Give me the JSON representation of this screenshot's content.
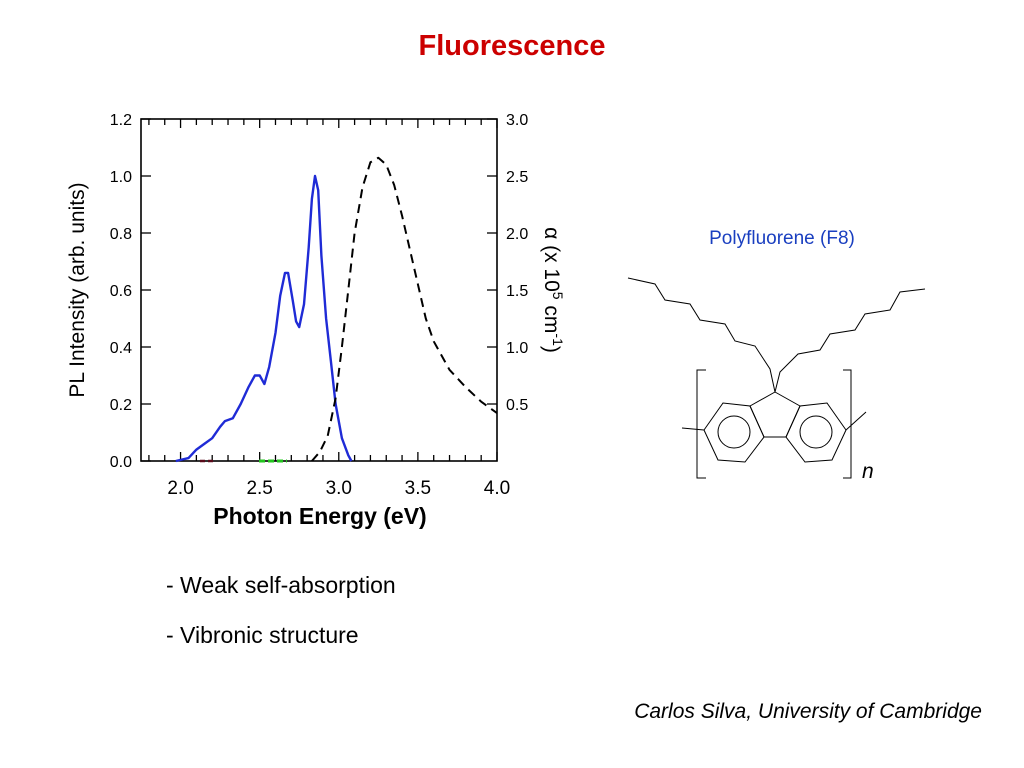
{
  "slide": {
    "title": "Fluorescence",
    "bullets": [
      "- Weak self-absorption",
      "- Vibronic structure"
    ],
    "credit": "Carlos Silva, University of Cambridge"
  },
  "molecule": {
    "label": "Polyfluorene (F8)",
    "repeat_subscript": "n",
    "label_color": "#1a3fc0"
  },
  "chart_data": {
    "type": "line",
    "xlabel": "Photon Energy (eV)",
    "ylabel": "PL Intensity (arb. units)",
    "y2label_parts": [
      "α (x 10",
      "5",
      " cm",
      "-1",
      ")"
    ],
    "xlim": [
      1.75,
      4.0
    ],
    "ylim": [
      0,
      1.2
    ],
    "y2lim": [
      0,
      3.0
    ],
    "x_ticks": [
      "2.0",
      "2.5",
      "3.0",
      "3.5",
      "4.0"
    ],
    "y_ticks": [
      "0.0",
      "0.2",
      "0.4",
      "0.6",
      "0.8",
      "1.0",
      "1.2"
    ],
    "y2_ticks": [
      "0.5",
      "1.0",
      "1.5",
      "2.0",
      "2.5",
      "3.0"
    ],
    "grid": false,
    "series": [
      {
        "axis": "left",
        "style": "solid",
        "color": "#1f2bd6",
        "points": [
          [
            1.97,
            0.0
          ],
          [
            2.05,
            0.01
          ],
          [
            2.1,
            0.04
          ],
          [
            2.15,
            0.06
          ],
          [
            2.2,
            0.08
          ],
          [
            2.25,
            0.12
          ],
          [
            2.28,
            0.14
          ],
          [
            2.33,
            0.15
          ],
          [
            2.38,
            0.2
          ],
          [
            2.43,
            0.26
          ],
          [
            2.47,
            0.3
          ],
          [
            2.5,
            0.3
          ],
          [
            2.53,
            0.27
          ],
          [
            2.56,
            0.33
          ],
          [
            2.6,
            0.45
          ],
          [
            2.63,
            0.58
          ],
          [
            2.66,
            0.66
          ],
          [
            2.68,
            0.66
          ],
          [
            2.71,
            0.56
          ],
          [
            2.73,
            0.49
          ],
          [
            2.75,
            0.47
          ],
          [
            2.78,
            0.55
          ],
          [
            2.81,
            0.75
          ],
          [
            2.83,
            0.92
          ],
          [
            2.85,
            1.0
          ],
          [
            2.87,
            0.95
          ],
          [
            2.89,
            0.72
          ],
          [
            2.92,
            0.5
          ],
          [
            2.95,
            0.35
          ],
          [
            2.98,
            0.2
          ],
          [
            3.02,
            0.08
          ],
          [
            3.06,
            0.02
          ],
          [
            3.08,
            0.0
          ]
        ]
      },
      {
        "axis": "right",
        "style": "dashed",
        "color": "#000000",
        "points": [
          [
            2.83,
            0.0
          ],
          [
            2.88,
            0.08
          ],
          [
            2.93,
            0.22
          ],
          [
            2.98,
            0.55
          ],
          [
            3.02,
            1.0
          ],
          [
            3.06,
            1.5
          ],
          [
            3.1,
            2.0
          ],
          [
            3.15,
            2.4
          ],
          [
            3.2,
            2.62
          ],
          [
            3.25,
            2.66
          ],
          [
            3.3,
            2.6
          ],
          [
            3.35,
            2.42
          ],
          [
            3.4,
            2.15
          ],
          [
            3.45,
            1.85
          ],
          [
            3.5,
            1.55
          ],
          [
            3.55,
            1.25
          ],
          [
            3.6,
            1.05
          ],
          [
            3.7,
            0.8
          ],
          [
            3.8,
            0.65
          ],
          [
            3.9,
            0.52
          ],
          [
            4.0,
            0.42
          ]
        ]
      }
    ]
  }
}
